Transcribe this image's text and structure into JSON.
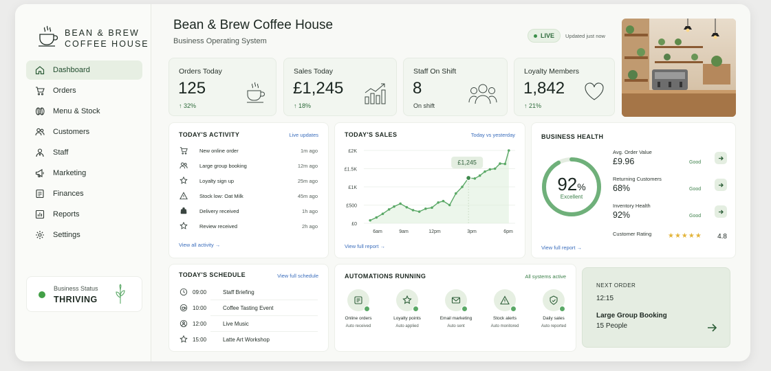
{
  "brand": {
    "line1": "BEAN & BREW",
    "line2": "COFFEE HOUSE",
    "logo_icon": "coffee-cup-icon"
  },
  "sidebar": {
    "items": [
      {
        "label": "Dashboard",
        "icon": "home-icon",
        "active": true
      },
      {
        "label": "Orders",
        "icon": "cart-icon"
      },
      {
        "label": "Menu & Stock",
        "icon": "coffee-beans-icon"
      },
      {
        "label": "Customers",
        "icon": "users-icon"
      },
      {
        "label": "Staff",
        "icon": "staff-icon"
      },
      {
        "label": "Marketing",
        "icon": "megaphone-icon"
      },
      {
        "label": "Finances",
        "icon": "ledger-icon"
      },
      {
        "label": "Reports",
        "icon": "report-chart-icon"
      },
      {
        "label": "Settings",
        "icon": "gear-icon"
      }
    ],
    "status": {
      "label": "Business Status",
      "value": "THRIVING",
      "icon": "sprout-icon",
      "dot_color": "#43a047"
    }
  },
  "header": {
    "title": "Bean & Brew Coffee House",
    "subtitle": "Business Operating System",
    "live": "LIVE",
    "updated": "Updated just now"
  },
  "stats": [
    {
      "label": "Orders Today",
      "value": "125",
      "change": "32%",
      "icon": "coffee-cup-icon"
    },
    {
      "label": "Sales Today",
      "value": "£1,245",
      "change": "18%",
      "icon": "growth-chart-icon"
    },
    {
      "label": "Staff On Shift",
      "value": "8",
      "change": "On shift",
      "icon": "team-icon"
    },
    {
      "label": "Loyalty Members",
      "value": "1,842",
      "change": "21%",
      "icon": "heart-icon"
    }
  ],
  "activity": {
    "title": "TODAY'S ACTIVITY",
    "link": "Live updates",
    "footer": "View all activity →",
    "items": [
      {
        "text": "New online order",
        "time": "1m ago",
        "icon": "cart-icon"
      },
      {
        "text": "Large group booking",
        "time": "12m ago",
        "icon": "users-icon"
      },
      {
        "text": "Loyalty sign up",
        "time": "25m ago",
        "icon": "star-badge-icon"
      },
      {
        "text": "Stock low: Oat Milk",
        "time": "45m ago",
        "icon": "warning-icon"
      },
      {
        "text": "Delivery received",
        "time": "1h ago",
        "icon": "package-icon"
      },
      {
        "text": "Review received",
        "time": "2h ago",
        "icon": "star-icon"
      }
    ]
  },
  "sales": {
    "title": "TODAY'S SALES",
    "link": "Today vs yesterday",
    "footer": "View full report →",
    "callout": "£1,245"
  },
  "chart_data": {
    "type": "line",
    "title": "TODAY'S SALES",
    "x_ticks": [
      "6am",
      "9am",
      "12pm",
      "3pm",
      "6pm"
    ],
    "y_ticks": [
      "£0",
      "£500",
      "£1K",
      "£1.5K",
      "£2K"
    ],
    "ylim": [
      0,
      2000
    ],
    "xlim": [
      6,
      18
    ],
    "grid": true,
    "annotation": {
      "x": 14.3,
      "y": 1245,
      "text": "£1,245"
    },
    "series": [
      {
        "x": [
          6.5,
          7,
          7.5,
          8,
          8.4,
          8.9,
          9.4,
          9.9,
          10.4,
          10.9,
          11.4,
          11.9,
          12.3,
          12.8,
          13.3,
          13.8,
          14.3,
          14.8,
          15.2,
          15.6,
          16.0,
          16.4,
          16.8,
          17.2,
          17.5
        ],
        "y": [
          80,
          160,
          260,
          380,
          460,
          540,
          440,
          360,
          320,
          400,
          430,
          570,
          610,
          500,
          820,
          1000,
          1245,
          1230,
          1310,
          1420,
          1480,
          1500,
          1640,
          1630,
          2000
        ]
      }
    ],
    "colors": {
      "line": "#5aa866",
      "fill": "#dceeda"
    }
  },
  "health": {
    "title": "BUSINESS HEALTH",
    "score": 92,
    "score_text": "92",
    "score_unit": "%",
    "score_label": "Excellent",
    "footer": "View full report →",
    "metrics": [
      {
        "label": "Avg. Order Value",
        "value": "£9.96",
        "rating": "Good"
      },
      {
        "label": "Returning Customers",
        "value": "68%",
        "rating": "Good"
      },
      {
        "label": "Inventory Health",
        "value": "92%",
        "rating": "Good"
      }
    ],
    "customer_rating": {
      "label": "Customer Rating",
      "value": "4.8",
      "stars": 5
    }
  },
  "schedule": {
    "title": "TODAY'S SCHEDULE",
    "link": "View full schedule",
    "items": [
      {
        "time": "09:00",
        "event": "Staff Briefing",
        "icon": "clock-icon"
      },
      {
        "time": "10:00",
        "event": "Coffee Tasting Event",
        "icon": "coffee-cup-icon"
      },
      {
        "time": "12:00",
        "event": "Live Music",
        "icon": "music-icon"
      },
      {
        "time": "15:00",
        "event": "Latte Art Workshop",
        "icon": "star-icon"
      }
    ]
  },
  "automations": {
    "title": "AUTOMATIONS RUNNING",
    "link": "All systems active",
    "items": [
      {
        "name": "Online orders",
        "sub": "Auto received",
        "icon": "receipt-icon"
      },
      {
        "name": "Loyalty points",
        "sub": "Auto applied",
        "icon": "star-icon"
      },
      {
        "name": "Email marketing",
        "sub": "Auto sent",
        "icon": "mail-icon"
      },
      {
        "name": "Stock alerts",
        "sub": "Auto monitored",
        "icon": "bell-icon"
      },
      {
        "name": "Daily sales",
        "sub": "Auto reported",
        "icon": "report-icon"
      }
    ]
  },
  "next_order": {
    "label": "NEXT ORDER",
    "time": "12:15",
    "event": "Large Group Booking",
    "people": "15 People"
  }
}
